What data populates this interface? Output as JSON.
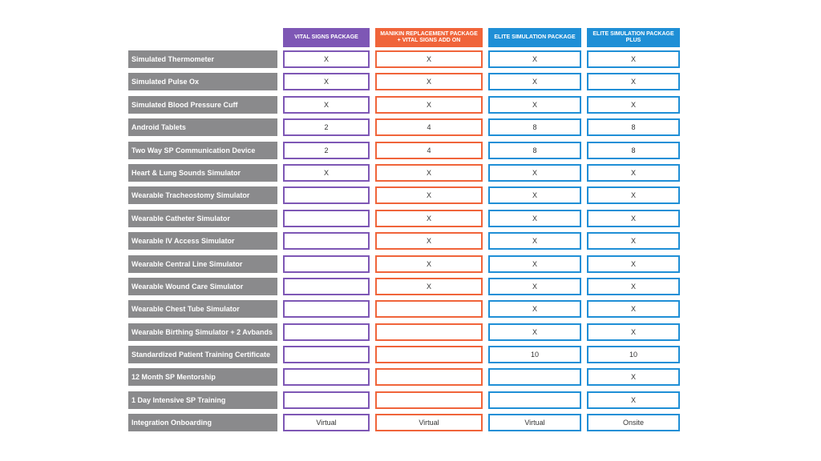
{
  "colors": {
    "vital": "#7e57b5",
    "manikin": "#f0643a",
    "elite": "#1f8fd6",
    "elite_plus": "#1f8fd6",
    "label_bg": "#8a8a8c"
  },
  "headers": [
    "VITAL SIGNS PACKAGE",
    "MANIKIN REPLACEMENT PACKAGE + VITAL SIGNS ADD ON",
    "ELITE SIMULATION PACKAGE",
    "ELITE SIMULATION PACKAGE PLUS"
  ],
  "rows": [
    {
      "label": "Simulated Thermometer",
      "values": [
        "X",
        "X",
        "X",
        "X"
      ]
    },
    {
      "label": "Simulated Pulse Ox",
      "values": [
        "X",
        "X",
        "X",
        "X"
      ]
    },
    {
      "label": "Simulated Blood Pressure Cuff",
      "values": [
        "X",
        "X",
        "X",
        "X"
      ]
    },
    {
      "label": "Android Tablets",
      "values": [
        "2",
        "4",
        "8",
        "8"
      ]
    },
    {
      "label": "Two Way SP Communication Device",
      "values": [
        "2",
        "4",
        "8",
        "8"
      ]
    },
    {
      "label": "Heart & Lung Sounds Simulator",
      "values": [
        "X",
        "X",
        "X",
        "X"
      ]
    },
    {
      "label": "Wearable Tracheostomy Simulator",
      "values": [
        "",
        "X",
        "X",
        "X"
      ]
    },
    {
      "label": "Wearable Catheter Simulator",
      "values": [
        "",
        "X",
        "X",
        "X"
      ]
    },
    {
      "label": "Wearable IV Access Simulator",
      "values": [
        "",
        "X",
        "X",
        "X"
      ]
    },
    {
      "label": "Wearable Central Line Simulator",
      "values": [
        "",
        "X",
        "X",
        "X"
      ]
    },
    {
      "label": "Wearable Wound Care Simulator",
      "values": [
        "",
        "X",
        "X",
        "X"
      ]
    },
    {
      "label": "Wearable Chest Tube Simulator",
      "values": [
        "",
        "",
        "X",
        "X"
      ]
    },
    {
      "label": "Wearable Birthing Simulator + 2 Avbands",
      "values": [
        "",
        "",
        "X",
        "X"
      ]
    },
    {
      "label": "Standardized Patient Training Certificate",
      "values": [
        "",
        "",
        "10",
        "10"
      ]
    },
    {
      "label": "12 Month SP Mentorship",
      "values": [
        "",
        "",
        "",
        "X"
      ]
    },
    {
      "label": "1 Day Intensive SP Training",
      "values": [
        "",
        "",
        "",
        "X"
      ]
    },
    {
      "label": "Integration Onboarding",
      "values": [
        "Virtual",
        "Virtual",
        "Virtual",
        "Onsite"
      ]
    }
  ]
}
